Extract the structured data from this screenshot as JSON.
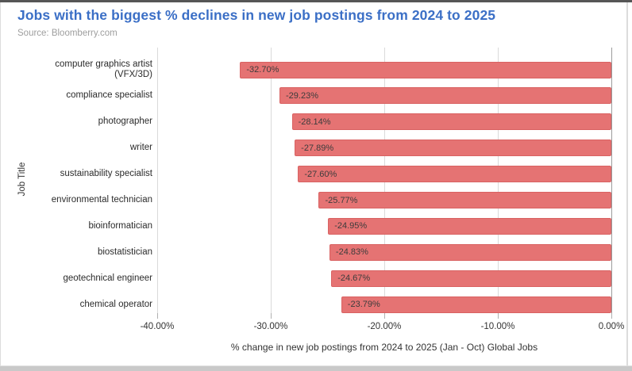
{
  "header": {
    "title": "Jobs with the biggest % declines in new job postings from 2024 to 2025",
    "source": "Source: Bloomberry.com"
  },
  "chart_data": {
    "type": "bar",
    "orientation": "horizontal",
    "title": "Jobs with the biggest % declines in new job postings from 2024 to 2025",
    "source": "Source: Bloomberry.com",
    "xlabel": "% change in new job postings from 2024 to 2025 (Jan - Oct) Global Jobs",
    "ylabel": "Job Title",
    "xlim": [
      -40,
      0
    ],
    "grid": true,
    "legend": "none",
    "categories": [
      "computer graphics artist\n(VFX/3D)",
      "compliance specialist",
      "photographer",
      "writer",
      "sustainability specialist",
      "environmental technician",
      "bioinformatician",
      "biostatistician",
      "geotechnical engineer",
      "chemical operator"
    ],
    "values": [
      -32.7,
      -29.23,
      -28.14,
      -27.89,
      -27.6,
      -25.77,
      -24.95,
      -24.83,
      -24.67,
      -23.79
    ],
    "bar_labels": [
      "-32.70%",
      "-29.23%",
      "-28.14%",
      "-27.89%",
      "-27.60%",
      "-25.77%",
      "-24.95%",
      "-24.83%",
      "-24.67%",
      "-23.79%"
    ],
    "x_tick_values": [
      -40,
      -30,
      -20,
      -10,
      0
    ],
    "x_tick_labels": [
      "-40.00%",
      "-30.00%",
      "-20.00%",
      "-10.00%",
      "0.00%"
    ],
    "colors": {
      "bar_fill": "#e57373",
      "bar_border": "#d96262",
      "bar_label_text": "#3c3c3c",
      "title_text": "#3b6fc6",
      "source_text": "#9e9e9e",
      "gridline": "#dadada",
      "zero_line": "#9b9b9b",
      "axis_text": "#333333"
    }
  }
}
